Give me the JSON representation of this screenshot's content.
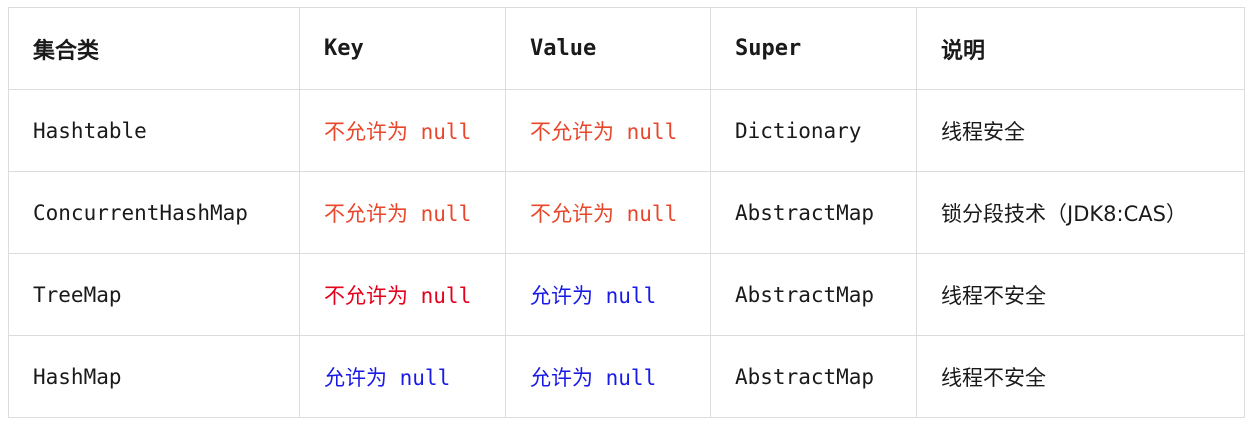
{
  "table": {
    "headers": [
      "集合类",
      "Key",
      "Value",
      "Super",
      "说明"
    ],
    "rows": [
      {
        "class": "Hashtable",
        "key": "不允许为 null",
        "value": "不允许为 null",
        "super": "Dictionary",
        "note": "线程安全"
      },
      {
        "class": "ConcurrentHashMap",
        "key": "不允许为 null",
        "value": "不允许为 null",
        "super": "AbstractMap",
        "note": "锁分段技术（JDK8:CAS）"
      },
      {
        "class": "TreeMap",
        "key": "不允许为 null",
        "value": "允许为 null",
        "super": "AbstractMap",
        "note": "线程不安全"
      },
      {
        "class": "HashMap",
        "key": "允许为 null",
        "value": "允许为 null",
        "super": "AbstractMap",
        "note": "线程不安全"
      }
    ]
  },
  "colors": {
    "not_allowed": "#e8472b",
    "not_allowed_strong": "#e5001b",
    "allowed": "#1a1ae6",
    "border": "#dcdcdc",
    "text": "#1a1a1a"
  }
}
